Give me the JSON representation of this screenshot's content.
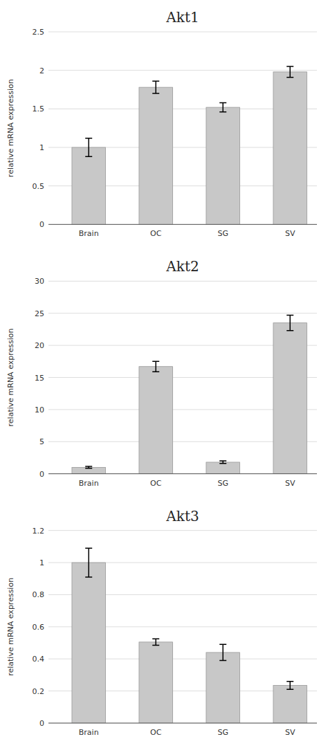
{
  "chart_data": [
    {
      "type": "bar",
      "title": "Akt1",
      "ylabel": "relative mRNA expression",
      "categories": [
        "Brain",
        "OC",
        "SG",
        "SV"
      ],
      "values": [
        1.0,
        1.78,
        1.52,
        1.98
      ],
      "errors": [
        0.12,
        0.08,
        0.06,
        0.07
      ],
      "color": "#c8c8c8",
      "ylim": [
        0,
        2.5
      ],
      "yticks": [
        0,
        0.5,
        1.0,
        1.5,
        2.0,
        2.5
      ],
      "grid": true
    },
    {
      "type": "bar",
      "title": "Akt2",
      "ylabel": "relative mRNA expression",
      "categories": [
        "Brain",
        "OC",
        "SG",
        "SV"
      ],
      "values": [
        1.0,
        16.7,
        1.8,
        23.5
      ],
      "errors": [
        0.15,
        0.8,
        0.2,
        1.2
      ],
      "color": "#c8c8c8",
      "ylim": [
        0,
        30
      ],
      "yticks": [
        0,
        5,
        10,
        15,
        20,
        25,
        30
      ],
      "grid": true
    },
    {
      "type": "bar",
      "title": "Akt3",
      "ylabel": "relative mRNA expression",
      "categories": [
        "Brain",
        "OC",
        "SG",
        "SV"
      ],
      "values": [
        1.0,
        0.505,
        0.44,
        0.235
      ],
      "errors": [
        0.09,
        0.02,
        0.05,
        0.025
      ],
      "color": "#c8c8c8",
      "ylim": [
        0,
        1.2
      ],
      "yticks": [
        0,
        0.2,
        0.4,
        0.6,
        0.8,
        1.0,
        1.2
      ],
      "grid": true
    }
  ]
}
